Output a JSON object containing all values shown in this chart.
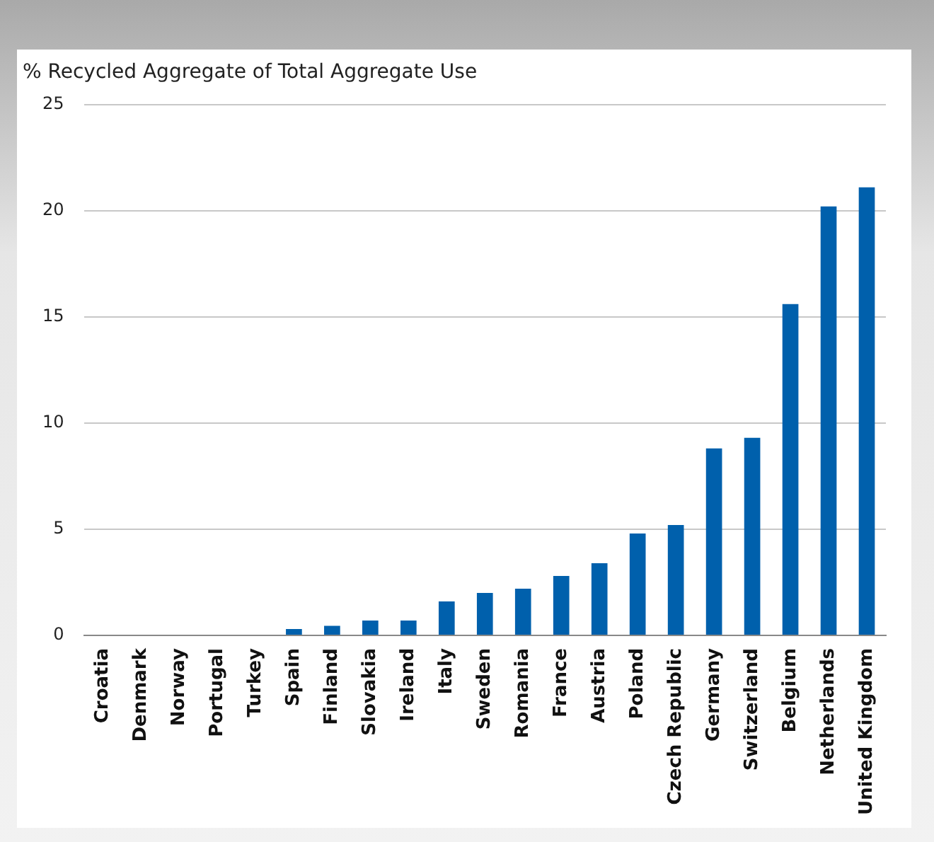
{
  "chart_data": {
    "type": "bar",
    "title": "% Recycled Aggregate of Total Aggregate Use",
    "categories": [
      "Croatia",
      "Denmark",
      "Norway",
      "Portugal",
      "Turkey",
      "Spain",
      "Finland",
      "Slovakia",
      "Ireland",
      "Italy",
      "Sweden",
      "Romania",
      "France",
      "Austria",
      "Poland",
      "Czech Republic",
      "Germany",
      "Switzerland",
      "Belgium",
      "Netherlands",
      "United Kingdom"
    ],
    "values": [
      0,
      0,
      0,
      0,
      0,
      0.3,
      0.45,
      0.7,
      0.7,
      1.6,
      2.0,
      2.2,
      2.8,
      3.4,
      4.8,
      5.2,
      8.8,
      9.3,
      15.6,
      20.2,
      21.1
    ],
    "color": "#0060ac",
    "ylim": [
      0,
      25
    ],
    "yticks": [
      0,
      5,
      10,
      15,
      20,
      25
    ],
    "grid": "y",
    "legend": false
  }
}
